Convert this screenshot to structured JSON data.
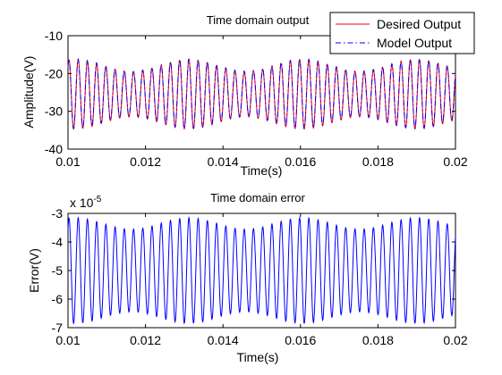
{
  "chart_data": [
    {
      "type": "line",
      "title": "Time domain output",
      "xlabel": "Time(s)",
      "ylabel": "Amplitude(V)",
      "xlim": [
        0.01,
        0.02
      ],
      "ylim": [
        -40,
        -10
      ],
      "xticks": [
        "0.01",
        "0.012",
        "0.014",
        "0.016",
        "0.018",
        "0.02"
      ],
      "yticks": [
        "-10",
        "-20",
        "-30",
        "-40"
      ],
      "grid": false,
      "legend": {
        "placement": "top-right"
      },
      "signal": {
        "center": -25.5,
        "amp_base": 7.6,
        "amp_mod": 1.6,
        "cycles": 42,
        "envelope_cycles": 3.4
      },
      "series": [
        {
          "name": "Desired Output",
          "color": "#ff0000",
          "style": "solid"
        },
        {
          "name": "Model Output",
          "color": "#0000ff",
          "style": "dashdot"
        }
      ]
    },
    {
      "type": "line",
      "title": "Time domain error",
      "xlabel": "Time(s)",
      "ylabel": "Error(V)",
      "y_multiplier_base": "x 10",
      "y_multiplier_exp": "-5",
      "xlim": [
        0.01,
        0.02
      ],
      "ylim": [
        -7,
        -3
      ],
      "xticks": [
        "0.01",
        "0.012",
        "0.014",
        "0.016",
        "0.018",
        "0.02"
      ],
      "yticks": [
        "-3",
        "-4",
        "-5",
        "-6",
        "-7"
      ],
      "grid": false,
      "signal": {
        "center": -5.0,
        "amp_base": 1.65,
        "amp_mod": 0.2,
        "cycles": 42,
        "envelope_cycles": 3.4
      },
      "series": [
        {
          "color": "#0000ff",
          "style": "solid"
        }
      ]
    }
  ]
}
